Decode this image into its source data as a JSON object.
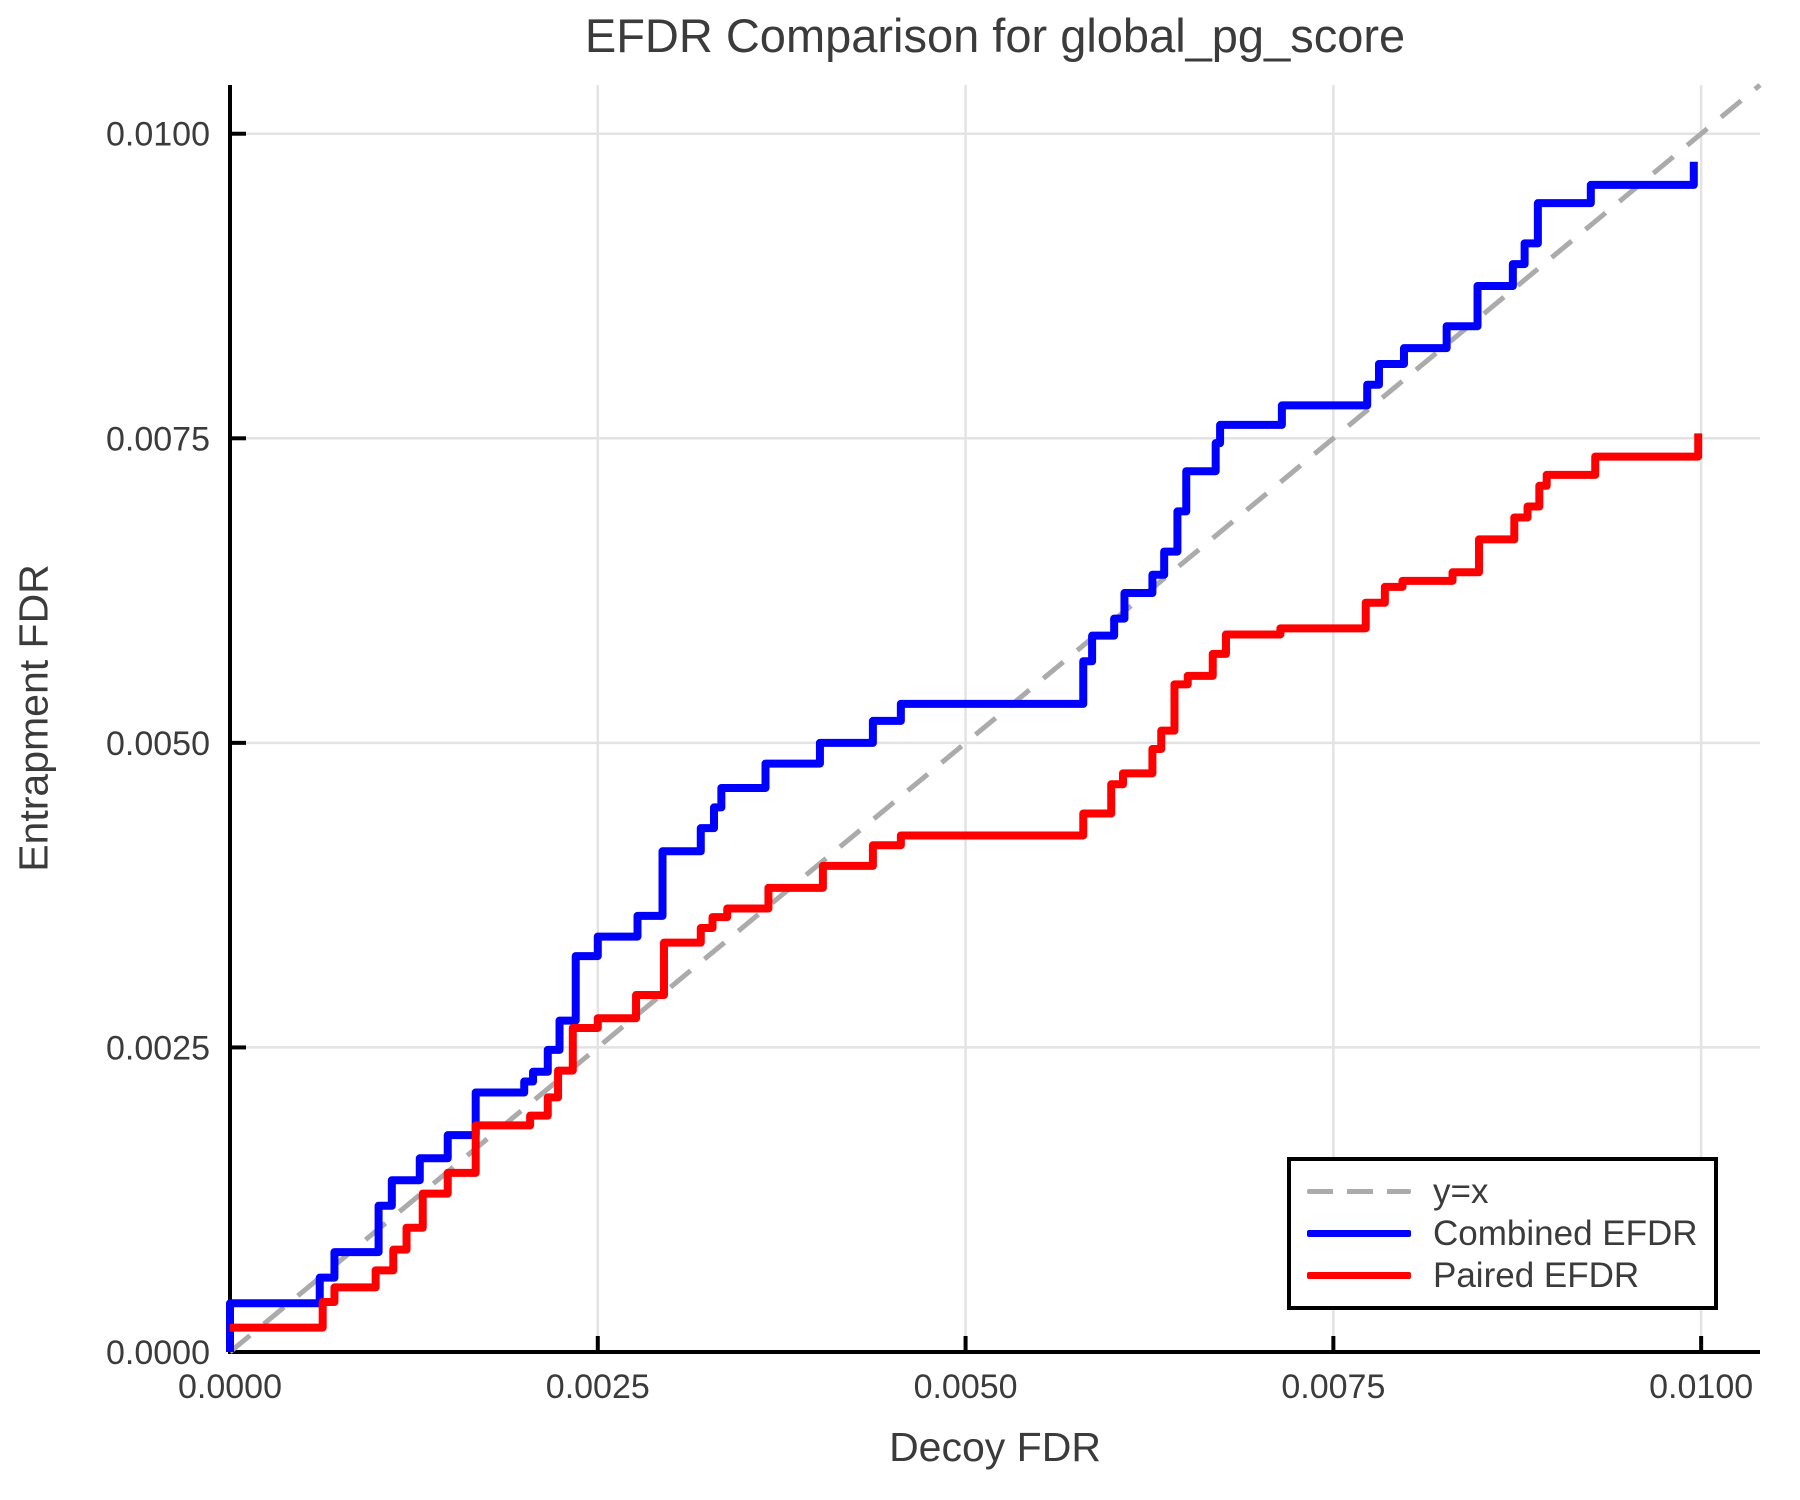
{
  "figure": {
    "background": "#ffffff"
  },
  "chart_data": {
    "type": "line",
    "title": "EFDR Comparison for global_pg_score",
    "xlabel": "Decoy FDR",
    "ylabel": "Entrapment FDR",
    "xlim": [
      0,
      0.0104
    ],
    "ylim": [
      0,
      0.0104
    ],
    "grid": true,
    "grid_color": "#e3e3e3",
    "axis_color": "#000000",
    "text_color": "#3b3b3b",
    "tick_values": [
      0,
      0.0025,
      0.005,
      0.0075,
      0.01
    ],
    "x_tick_labels": [
      "0.0000",
      "0.0025",
      "0.0050",
      "0.0075",
      "0.0100"
    ],
    "y_tick_labels": [
      "0.0000",
      "0.0025",
      "0.0050",
      "0.0075",
      "0.0100"
    ],
    "legend_position": "bottom-right",
    "series": [
      {
        "name": "y=x",
        "color": "#ababab",
        "dash": true,
        "style": "line",
        "points": [
          [
            0,
            0
          ],
          [
            0.0104,
            0.0104
          ]
        ]
      },
      {
        "name": "Combined EFDR",
        "color": "#0000ff",
        "dash": false,
        "style": "step",
        "points": [
          [
            0.0,
            0.0
          ],
          [
            0.0,
            0.0004
          ],
          [
            0.00061,
            0.00061
          ],
          [
            0.00071,
            0.00082
          ],
          [
            0.00101,
            0.0012
          ],
          [
            0.0011,
            0.00141
          ],
          [
            0.00129,
            0.00159
          ],
          [
            0.00148,
            0.00178
          ],
          [
            0.00167,
            0.00213
          ],
          [
            0.002,
            0.00222
          ],
          [
            0.00206,
            0.0023
          ],
          [
            0.00216,
            0.00248
          ],
          [
            0.00224,
            0.00272
          ],
          [
            0.00235,
            0.00325
          ],
          [
            0.0025,
            0.00341
          ],
          [
            0.00277,
            0.00358
          ],
          [
            0.00294,
            0.00411
          ],
          [
            0.0032,
            0.0043
          ],
          [
            0.00329,
            0.00447
          ],
          [
            0.00334,
            0.00463
          ],
          [
            0.00364,
            0.00483
          ],
          [
            0.00401,
            0.005
          ],
          [
            0.00437,
            0.00518
          ],
          [
            0.00456,
            0.00532
          ],
          [
            0.0058,
            0.00567
          ],
          [
            0.00586,
            0.00588
          ],
          [
            0.00601,
            0.00602
          ],
          [
            0.00608,
            0.00623
          ],
          [
            0.00627,
            0.00638
          ],
          [
            0.00635,
            0.00657
          ],
          [
            0.00644,
            0.0069
          ],
          [
            0.0065,
            0.00723
          ],
          [
            0.0067,
            0.00746
          ],
          [
            0.00673,
            0.00761
          ],
          [
            0.00715,
            0.00777
          ],
          [
            0.00773,
            0.00794
          ],
          [
            0.00781,
            0.00811
          ],
          [
            0.00798,
            0.00824
          ],
          [
            0.00827,
            0.00842
          ],
          [
            0.00848,
            0.00875
          ],
          [
            0.00872,
            0.00893
          ],
          [
            0.0088,
            0.0091
          ],
          [
            0.00889,
            0.00943
          ],
          [
            0.00925,
            0.00958
          ],
          [
            0.00995,
            0.00977
          ]
        ]
      },
      {
        "name": "Paired EFDR",
        "color": "#ff0000",
        "dash": false,
        "style": "step",
        "points": [
          [
            0.0,
            0.0002
          ],
          [
            0.00063,
            0.00041
          ],
          [
            0.00071,
            0.00053
          ],
          [
            0.00099,
            0.00067
          ],
          [
            0.00111,
            0.00084
          ],
          [
            0.0012,
            0.00102
          ],
          [
            0.00131,
            0.0013
          ],
          [
            0.00148,
            0.00147
          ],
          [
            0.00167,
            0.00186
          ],
          [
            0.00204,
            0.00194
          ],
          [
            0.00216,
            0.00209
          ],
          [
            0.00223,
            0.00231
          ],
          [
            0.00233,
            0.00266
          ],
          [
            0.0025,
            0.00274
          ],
          [
            0.00276,
            0.00293
          ],
          [
            0.00295,
            0.00336
          ],
          [
            0.0032,
            0.00348
          ],
          [
            0.00328,
            0.00357
          ],
          [
            0.00338,
            0.00364
          ],
          [
            0.00366,
            0.00381
          ],
          [
            0.00403,
            0.00399
          ],
          [
            0.00437,
            0.00416
          ],
          [
            0.00456,
            0.00424
          ],
          [
            0.0058,
            0.00442
          ],
          [
            0.00599,
            0.00466
          ],
          [
            0.00607,
            0.00475
          ],
          [
            0.00627,
            0.00495
          ],
          [
            0.00633,
            0.0051
          ],
          [
            0.00642,
            0.00548
          ],
          [
            0.00651,
            0.00555
          ],
          [
            0.00668,
            0.00573
          ],
          [
            0.00677,
            0.00589
          ],
          [
            0.00714,
            0.00594
          ],
          [
            0.00772,
            0.00615
          ],
          [
            0.00785,
            0.00628
          ],
          [
            0.00797,
            0.00633
          ],
          [
            0.00831,
            0.0064
          ],
          [
            0.00849,
            0.00667
          ],
          [
            0.00873,
            0.00685
          ],
          [
            0.00882,
            0.00694
          ],
          [
            0.0089,
            0.00711
          ],
          [
            0.00895,
            0.0072
          ],
          [
            0.00928,
            0.00735
          ],
          [
            0.00998,
            0.00754
          ]
        ]
      }
    ]
  }
}
